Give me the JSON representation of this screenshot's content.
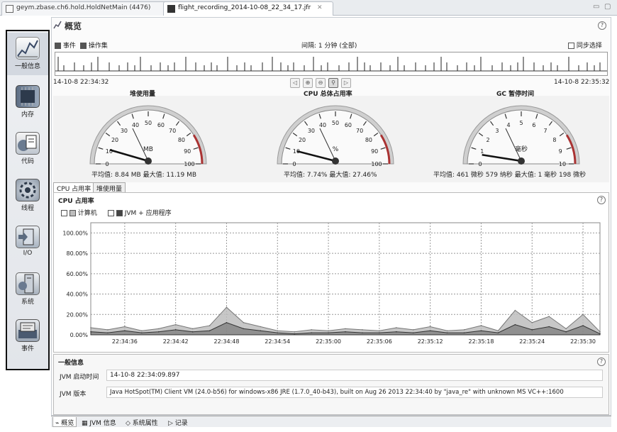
{
  "tabs": [
    {
      "label": "geym.zbase.ch6.hold.HoldNetMain (4476)"
    },
    {
      "label": "flight_recording_2014-10-08_22_34_17.jfr",
      "close": "✕"
    }
  ],
  "window_controls": {
    "minimize": "▭",
    "maximize": "▢"
  },
  "sidebar": {
    "items": [
      {
        "label": "一般信息",
        "icon": "overview-icon"
      },
      {
        "label": "内存",
        "icon": "memory-icon"
      },
      {
        "label": "代码",
        "icon": "code-icon"
      },
      {
        "label": "线程",
        "icon": "threads-icon"
      },
      {
        "label": "I/O",
        "icon": "io-icon"
      },
      {
        "label": "系统",
        "icon": "system-icon"
      },
      {
        "label": "事件",
        "icon": "events-icon"
      }
    ]
  },
  "overview": {
    "title": "概览",
    "help": "?",
    "events_label": "事件",
    "operations_label": "操作集",
    "interval_label": "间隔: 1 分钟 (全部)",
    "sync_label": "同步选择",
    "start_time": "14-10-8 22:34:32",
    "end_time": "14-10-8 22:35:32"
  },
  "gauges": [
    {
      "title": "堆使用量",
      "unit": "MB",
      "ticks": [
        "0",
        "10",
        "20",
        "30",
        "40",
        "50",
        "60",
        "70",
        "80",
        "90",
        "100"
      ],
      "summary": "平均值: 8.84 MB   最大值: 11.19 MB"
    },
    {
      "title": "CPU 总体占用率",
      "unit": "%",
      "ticks": [
        "0",
        "10",
        "20",
        "30",
        "40",
        "50",
        "60",
        "70",
        "80",
        "90",
        "100"
      ],
      "summary": "平均值: 7.74%   最大值: 27.46%"
    },
    {
      "title": "GC 暂停时间",
      "unit": "毫秒",
      "ticks": [
        "0",
        "1",
        "2",
        "3",
        "4",
        "5",
        "6",
        "7",
        "8",
        "9",
        "10"
      ],
      "summary": "平均值: 461 微秒 579 纳秒   最大值: 1 毫秒 198 微秒"
    }
  ],
  "subtabs": [
    {
      "label": "CPU 占用率"
    },
    {
      "label": "堆使用量"
    }
  ],
  "cpu_section": {
    "title": "CPU 占用率",
    "help": "?",
    "legend": [
      {
        "label": "计算机",
        "color": "#bdbdbd"
      },
      {
        "label": "JVM + 应用程序",
        "color": "#444444"
      }
    ]
  },
  "chart_data": {
    "type": "area",
    "x": [
      "22:34:32",
      "22:34:34",
      "22:34:36",
      "22:34:38",
      "22:34:40",
      "22:34:42",
      "22:34:44",
      "22:34:46",
      "22:34:48",
      "22:34:50",
      "22:34:52",
      "22:34:54",
      "22:34:56",
      "22:34:58",
      "22:35:00",
      "22:35:02",
      "22:35:04",
      "22:35:06",
      "22:35:08",
      "22:35:10",
      "22:35:12",
      "22:35:14",
      "22:35:16",
      "22:35:18",
      "22:35:20",
      "22:35:22",
      "22:35:24",
      "22:35:26",
      "22:35:28",
      "22:35:30",
      "22:35:32"
    ],
    "x_tick_labels": [
      "22:34:36",
      "22:34:42",
      "22:34:48",
      "22:34:54",
      "22:35:00",
      "22:35:06",
      "22:35:12",
      "22:35:18",
      "22:35:24",
      "22:35:30"
    ],
    "y_tick_labels": [
      "0.00%",
      "20.00%",
      "40.00%",
      "60.00%",
      "80.00%",
      "100.00%"
    ],
    "ylim": [
      0,
      110
    ],
    "series": [
      {
        "name": "计算机",
        "values": [
          7,
          5,
          8,
          4,
          6,
          10,
          6,
          9,
          27,
          12,
          8,
          4,
          3,
          5,
          4,
          6,
          5,
          4,
          7,
          5,
          8,
          4,
          5,
          9,
          4,
          24,
          12,
          18,
          6,
          20,
          3
        ]
      },
      {
        "name": "JVM + 应用程序",
        "values": [
          3,
          2,
          4,
          2,
          3,
          5,
          3,
          4,
          12,
          6,
          4,
          2,
          1,
          2,
          2,
          3,
          2,
          2,
          3,
          2,
          4,
          2,
          2,
          4,
          2,
          10,
          5,
          8,
          3,
          9,
          1
        ]
      }
    ],
    "grid": true
  },
  "general_info": {
    "title": "一般信息",
    "help": "?",
    "rows": [
      {
        "label": "JVM 启动时间",
        "value": "14-10-8 22:34:09.897"
      },
      {
        "label": "JVM 版本",
        "value": "Java HotSpot(TM) Client VM (24.0-b56) for windows-x86 JRE (1.7.0_40-b43), built on Aug 26 2013 22:34:40 by \"java_re\" with unknown MS VC++:1600"
      }
    ]
  },
  "bottom_tabs": [
    {
      "label": "概览"
    },
    {
      "label": "JVM 信息"
    },
    {
      "label": "系统属性"
    },
    {
      "label": "记录"
    }
  ]
}
